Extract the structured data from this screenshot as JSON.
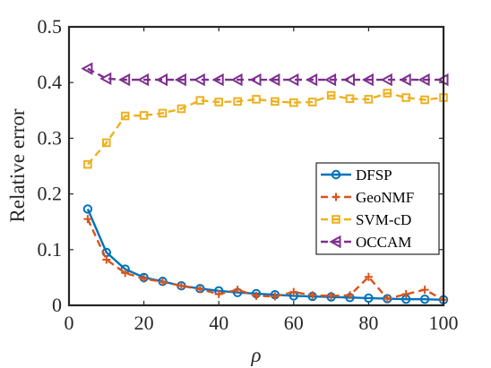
{
  "chart_data": {
    "type": "line",
    "xlabel": "ρ",
    "ylabel": "Relative error",
    "xlim": [
      0,
      100
    ],
    "ylim": [
      0,
      0.5
    ],
    "xticks": [
      "0",
      "20",
      "40",
      "60",
      "80",
      "100"
    ],
    "yticks": [
      "0",
      "0.1",
      "0.2",
      "0.3",
      "0.4",
      "0.5"
    ],
    "legend_position": "right-middle",
    "x": [
      5,
      10,
      15,
      20,
      25,
      30,
      35,
      40,
      45,
      50,
      55,
      60,
      65,
      70,
      75,
      80,
      85,
      90,
      95,
      100
    ],
    "series": [
      {
        "name": "DFSP",
        "color": "#0072BD",
        "marker": "circle",
        "dash": "solid",
        "values": [
          0.173,
          0.095,
          0.065,
          0.05,
          0.043,
          0.035,
          0.03,
          0.026,
          0.023,
          0.021,
          0.019,
          0.017,
          0.016,
          0.015,
          0.014,
          0.013,
          0.012,
          0.011,
          0.011,
          0.01
        ]
      },
      {
        "name": "GeoNMF",
        "color": "#D95319",
        "marker": "plus",
        "dash": "dashed",
        "values": [
          0.155,
          0.082,
          0.058,
          0.048,
          0.042,
          0.035,
          0.029,
          0.02,
          0.028,
          0.017,
          0.016,
          0.024,
          0.018,
          0.017,
          0.018,
          0.051,
          0.012,
          0.02,
          0.028,
          0.01
        ]
      },
      {
        "name": "SVM-cD",
        "color": "#EDB120",
        "marker": "square",
        "dash": "dashed",
        "values": [
          0.253,
          0.292,
          0.34,
          0.341,
          0.345,
          0.353,
          0.368,
          0.365,
          0.366,
          0.37,
          0.366,
          0.364,
          0.365,
          0.377,
          0.371,
          0.37,
          0.381,
          0.373,
          0.369,
          0.373
        ]
      },
      {
        "name": "OCCAM",
        "color": "#7E2F8E",
        "marker": "triangle-left",
        "dash": "dashed",
        "values": [
          0.425,
          0.407,
          0.405,
          0.405,
          0.405,
          0.405,
          0.405,
          0.405,
          0.405,
          0.405,
          0.405,
          0.405,
          0.405,
          0.405,
          0.405,
          0.405,
          0.405,
          0.405,
          0.405,
          0.405
        ]
      }
    ]
  }
}
